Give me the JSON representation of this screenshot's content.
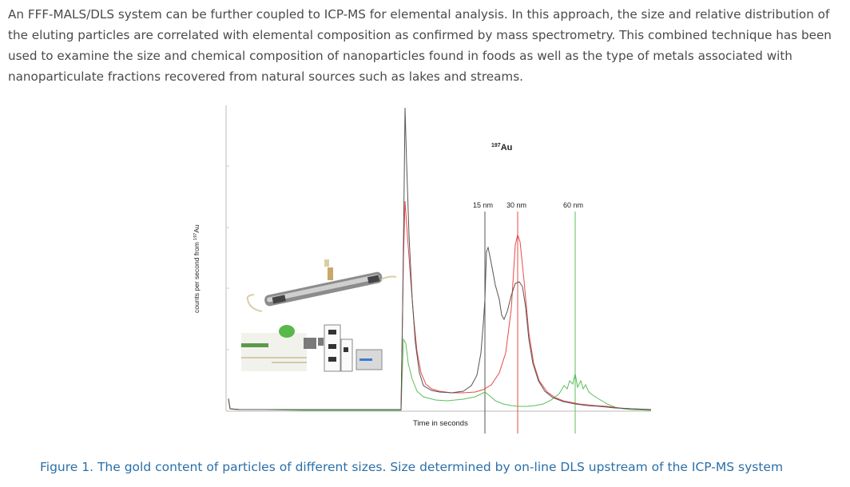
{
  "paragraph": {
    "text": "An FFF-MALS/DLS system can be further coupled to ICP-MS for elemental analysis. In this approach, the size and relative distribution of the eluting particles are correlated with elemental composition as confirmed by mass spectrometry. This combined technique has been used to examine the size and chemical composition of nanoparticles found in foods as well as the type of metals associated with nanoparticulate fractions recovered from natural sources such as lakes and streams."
  },
  "figure": {
    "title_superscript": "197",
    "title_element": "Au",
    "ylabel_prefix": "counts per second from ",
    "ylabel_superscript": "197",
    "ylabel_element": "Au",
    "xlabel": "Time in seconds",
    "markers": [
      {
        "label": "15 nm",
        "color": "#555555"
      },
      {
        "label": "30 nm",
        "color": "#e8484a"
      },
      {
        "label": "60 nm",
        "color": "#5bbf5b"
      }
    ],
    "series_colors": {
      "dark": "#555555",
      "red": "#e8484a",
      "green": "#5bbf5b"
    },
    "instrument_illustration": "instrument-image"
  },
  "caption": {
    "text": "Figure 1. The gold content of particles of different sizes. Size determined by on-line DLS upstream of the ICP-MS system"
  }
}
